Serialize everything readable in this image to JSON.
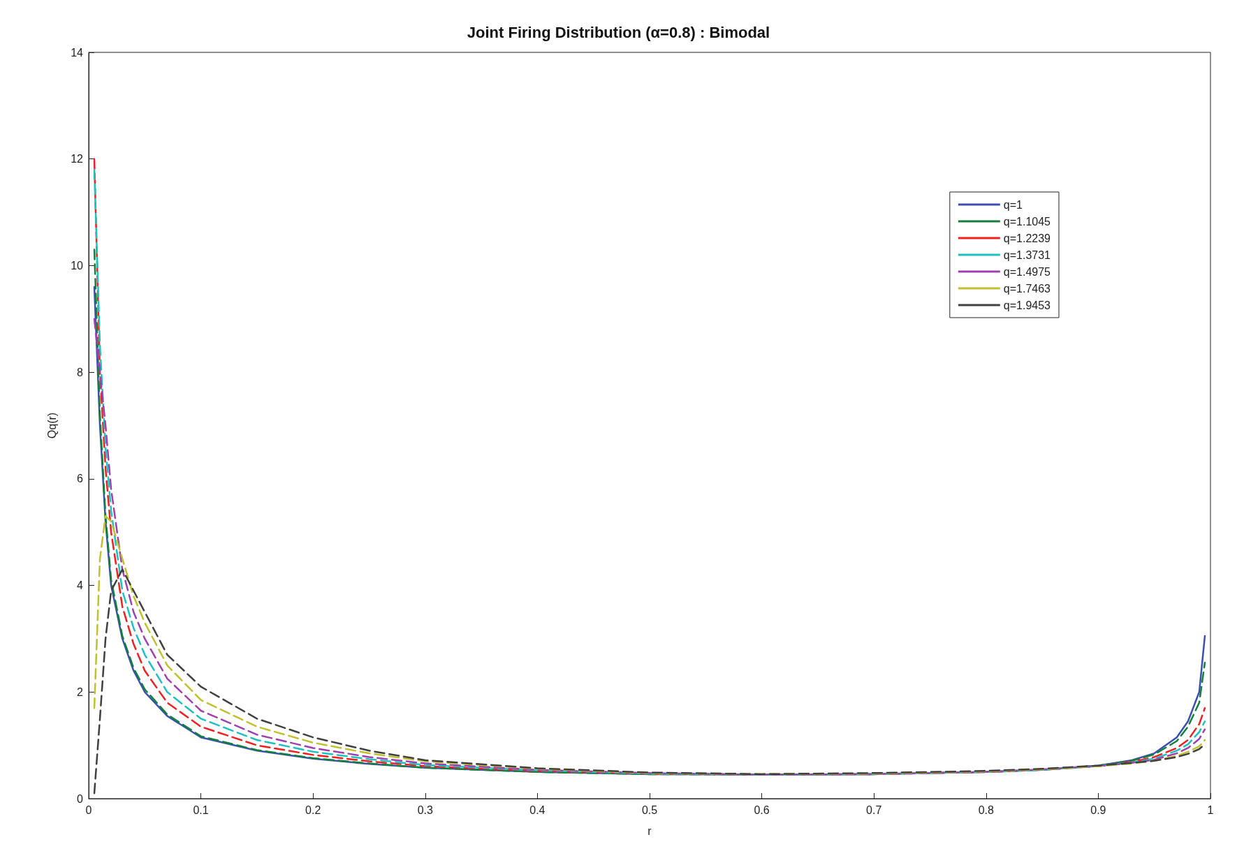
{
  "chart_data": {
    "type": "line",
    "title": "Joint Firing Distribution (α=0.8) : Bimodal",
    "xlabel": "r",
    "ylabel": "Qq(r)",
    "x": [
      0.005,
      0.01,
      0.015,
      0.02,
      0.03,
      0.04,
      0.05,
      0.07,
      0.1,
      0.15,
      0.2,
      0.25,
      0.3,
      0.4,
      0.5,
      0.6,
      0.7,
      0.8,
      0.85,
      0.9,
      0.93,
      0.95,
      0.97,
      0.98,
      0.99,
      0.995
    ],
    "series": [
      {
        "name": "q=1",
        "color": "#3a4fb0",
        "line_style": "solid",
        "values": [
          9.6,
          7,
          5.2,
          4,
          3,
          2.4,
          2.0,
          1.55,
          1.15,
          0.9,
          0.75,
          0.65,
          0.58,
          0.5,
          0.46,
          0.45,
          0.46,
          0.5,
          0.54,
          0.62,
          0.72,
          0.85,
          1.15,
          1.45,
          2.0,
          3.05
        ]
      },
      {
        "name": "q=1.1045",
        "color": "#12803c",
        "line_style": "dashed",
        "values": [
          10.3,
          7.2,
          5.3,
          4.1,
          3.05,
          2.45,
          2.05,
          1.58,
          1.17,
          0.91,
          0.76,
          0.66,
          0.58,
          0.5,
          0.46,
          0.45,
          0.46,
          0.5,
          0.54,
          0.62,
          0.71,
          0.83,
          1.08,
          1.35,
          1.8,
          2.55
        ]
      },
      {
        "name": "q=1.2239",
        "color": "#ee2020",
        "line_style": "dashed",
        "values": [
          12.0,
          8,
          6.2,
          5,
          3.6,
          2.9,
          2.4,
          1.8,
          1.35,
          1.0,
          0.82,
          0.7,
          0.61,
          0.52,
          0.47,
          0.45,
          0.46,
          0.5,
          0.54,
          0.61,
          0.69,
          0.78,
          0.95,
          1.1,
          1.4,
          1.7
        ]
      },
      {
        "name": "q=1.3731",
        "color": "#1ec0c0",
        "line_style": "dashed",
        "values": [
          11.8,
          8.5,
          6.6,
          5.4,
          3.9,
          3.2,
          2.7,
          2.0,
          1.5,
          1.1,
          0.88,
          0.74,
          0.63,
          0.53,
          0.47,
          0.45,
          0.46,
          0.5,
          0.54,
          0.61,
          0.68,
          0.75,
          0.9,
          1.02,
          1.25,
          1.45
        ]
      },
      {
        "name": "q=1.4975",
        "color": "#a040b0",
        "line_style": "dashed",
        "values": [
          9,
          8,
          7,
          5.8,
          4.3,
          3.5,
          3.0,
          2.25,
          1.65,
          1.2,
          0.95,
          0.78,
          0.66,
          0.54,
          0.48,
          0.45,
          0.46,
          0.5,
          0.55,
          0.61,
          0.67,
          0.73,
          0.85,
          0.95,
          1.12,
          1.3
        ]
      },
      {
        "name": "q=1.7463",
        "color": "#c0c030",
        "line_style": "dashed",
        "values": [
          1.7,
          4.5,
          5.3,
          5.2,
          4.5,
          3.8,
          3.3,
          2.5,
          1.85,
          1.35,
          1.05,
          0.85,
          0.7,
          0.56,
          0.48,
          0.46,
          0.47,
          0.51,
          0.55,
          0.61,
          0.66,
          0.71,
          0.8,
          0.88,
          0.98,
          1.1
        ]
      },
      {
        "name": "q=1.9453",
        "color": "#404040",
        "line_style": "dashed",
        "values": [
          0.1,
          1.5,
          3.0,
          3.9,
          4.3,
          3.9,
          3.5,
          2.7,
          2.1,
          1.5,
          1.15,
          0.9,
          0.72,
          0.57,
          0.49,
          0.46,
          0.48,
          0.52,
          0.56,
          0.62,
          0.67,
          0.71,
          0.78,
          0.84,
          0.93,
          1.02
        ]
      }
    ],
    "xlim": [
      0,
      1
    ],
    "xticks": [
      0,
      0.1,
      0.2,
      0.3,
      0.4,
      0.5,
      0.6,
      0.7,
      0.8,
      0.9,
      1
    ],
    "ylim": [
      0,
      14
    ],
    "yticks": [
      0,
      2,
      4,
      6,
      8,
      10,
      12,
      14
    ],
    "grid": false,
    "legend": "top right",
    "marker": "none"
  }
}
